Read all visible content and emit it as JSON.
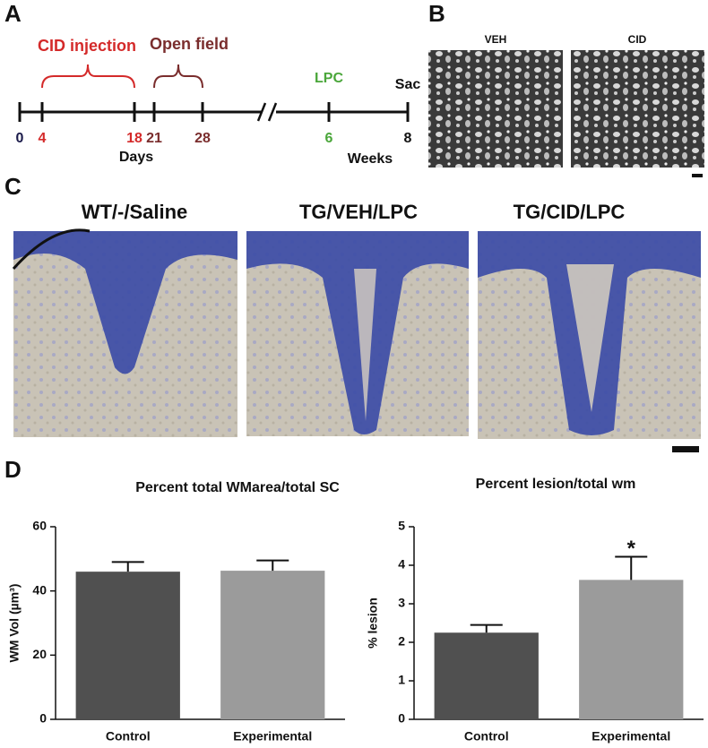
{
  "panels": {
    "a": "A",
    "b": "B",
    "c": "C",
    "d": "D"
  },
  "timeline": {
    "ticks": [
      {
        "label": 0,
        "color": "#1a1a4a"
      },
      {
        "label": 4,
        "color": "#d42a2a"
      },
      {
        "label": 18,
        "color": "#d42a2a"
      },
      {
        "label": 21,
        "color": "#7a2d2d"
      },
      {
        "label": 28,
        "color": "#7a2d2d"
      },
      {
        "label": 6,
        "color": "#4aa63a"
      },
      {
        "label": 8,
        "color": "#111"
      }
    ],
    "days": "Days",
    "weeks": "Weeks",
    "cid": {
      "label": "CID injection",
      "color": "#d42a2a"
    },
    "open_field": {
      "label": "Open field",
      "color": "#7a2d2d"
    },
    "lpc": {
      "label": "LPC",
      "color": "#4aa63a"
    },
    "sac": "Sac"
  },
  "panel_b": {
    "images": [
      "VEH",
      "CID"
    ]
  },
  "panel_c": {
    "images": [
      "WT/-/Saline",
      "TG/VEH/LPC",
      "TG/CID/LPC"
    ]
  },
  "chart_data": [
    {
      "type": "bar",
      "title": "Percent total WMarea/total SC",
      "y_label": "WM Vol (µm³)",
      "categories": [
        "Control",
        "Experimental"
      ],
      "values": [
        46,
        46.3
      ],
      "errors": [
        3,
        3.2
      ],
      "colors": [
        "#505050",
        "#9b9b9b"
      ],
      "ylim": [
        0,
        60
      ],
      "yticks": [
        0,
        20,
        40,
        60
      ]
    },
    {
      "type": "bar",
      "title": "Percent lesion/total wm",
      "y_label": "% lesion",
      "categories": [
        "Control",
        "Experimental"
      ],
      "values": [
        2.25,
        3.62
      ],
      "errors": [
        0.2,
        0.6
      ],
      "colors": [
        "#505050",
        "#9b9b9b"
      ],
      "ylim": [
        0,
        5
      ],
      "yticks": [
        0,
        1,
        2,
        3,
        4,
        5
      ],
      "annotations": [
        {
          "category": 1,
          "text": "*"
        }
      ]
    }
  ]
}
